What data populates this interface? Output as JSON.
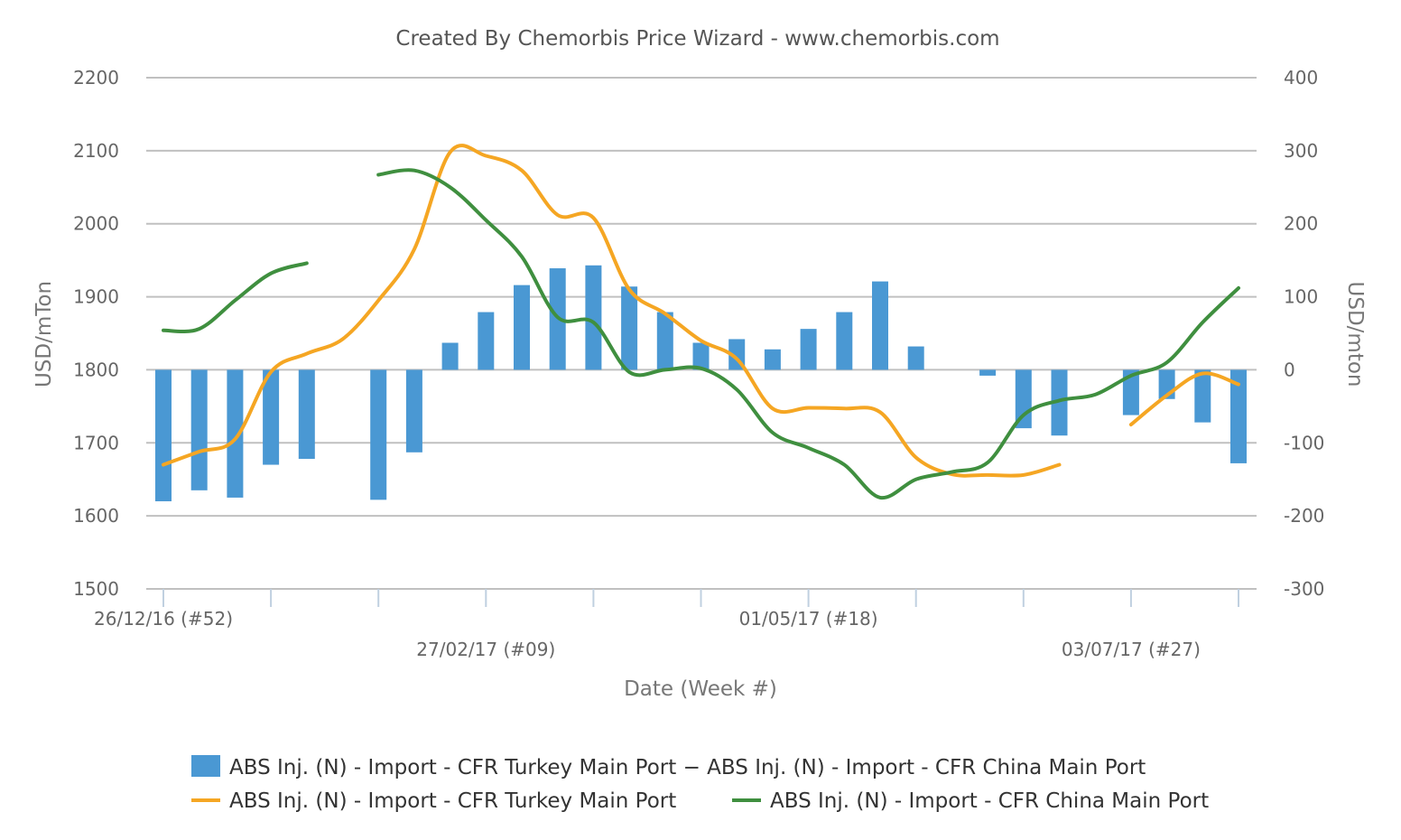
{
  "chart_data": {
    "type": "bar+line",
    "title": "Created By Chemorbis Price Wizard - www.chemorbis.com",
    "xlabel": "Date (Week #)",
    "ylabel_left": "USD/mTon",
    "ylabel_right": "USD/mton",
    "ylim_left": [
      1500,
      2200
    ],
    "ylim_right": [
      -300,
      400
    ],
    "yticks_left": [
      "2200",
      "2100",
      "2000",
      "1900",
      "1800",
      "1700",
      "1600",
      "1500"
    ],
    "yticks_right": [
      "400",
      "300",
      "200",
      "100",
      "0",
      "-100",
      "-200",
      "-300"
    ],
    "grid": true,
    "legend_position": "bottom",
    "x_tick_labels": [
      {
        "week": 0,
        "label": "26/12/16 (#52)",
        "row": 0
      },
      {
        "week": 9,
        "label": "27/02/17 (#09)",
        "row": 1
      },
      {
        "week": 18,
        "label": "01/05/17 (#18)",
        "row": 0
      },
      {
        "week": 27,
        "label": "03/07/17 (#27)",
        "row": 1
      }
    ],
    "x_ticks_weeks": [
      0,
      3,
      6,
      9,
      12,
      15,
      18,
      21,
      24,
      27,
      30
    ],
    "weeks": [
      0,
      1,
      2,
      3,
      4,
      5,
      6,
      7,
      8,
      9,
      10,
      11,
      12,
      13,
      14,
      15,
      16,
      17,
      18,
      19,
      20,
      21,
      22,
      23,
      24,
      25,
      26,
      27,
      28,
      29,
      30
    ],
    "series": [
      {
        "name": "ABS Inj. (N) - Import - CFR Turkey Main Port − ABS Inj. (N) - Import - CFR China Main Port",
        "kind": "bar",
        "axis": "right",
        "color": "#4a98d3",
        "values": [
          -180,
          -165,
          -175,
          -130,
          -122,
          null,
          -178,
          -113,
          37,
          79,
          116,
          139,
          143,
          114,
          79,
          37,
          42,
          28,
          56,
          79,
          121,
          32,
          null,
          -8,
          -80,
          -90,
          null,
          -62,
          -40,
          -72,
          -128
        ]
      },
      {
        "name": "ABS Inj. (N) - Import - CFR Turkey Main Port",
        "kind": "line",
        "axis": "left",
        "color": "#f5a623",
        "values": [
          1670,
          1688,
          1705,
          1797,
          1822,
          1842,
          1895,
          1965,
          2098,
          2093,
          2073,
          2012,
          2008,
          1910,
          1877,
          1840,
          1815,
          1747,
          1748,
          1747,
          1742,
          1680,
          1657,
          1656,
          1656,
          1670,
          null,
          1725,
          1765,
          1795,
          1780
        ]
      },
      {
        "name": "ABS Inj. (N) - Import - CFR China Main Port",
        "kind": "line",
        "axis": "left",
        "color": "#3f8f3f",
        "values": [
          1854,
          1856,
          1895,
          1932,
          1946,
          null,
          2067,
          2073,
          2050,
          2005,
          1955,
          1872,
          1865,
          1797,
          1800,
          1802,
          1773,
          1714,
          1693,
          1670,
          1625,
          1650,
          1660,
          1673,
          1738,
          1758,
          1766,
          1792,
          1810,
          1865,
          1912
        ]
      }
    ]
  }
}
